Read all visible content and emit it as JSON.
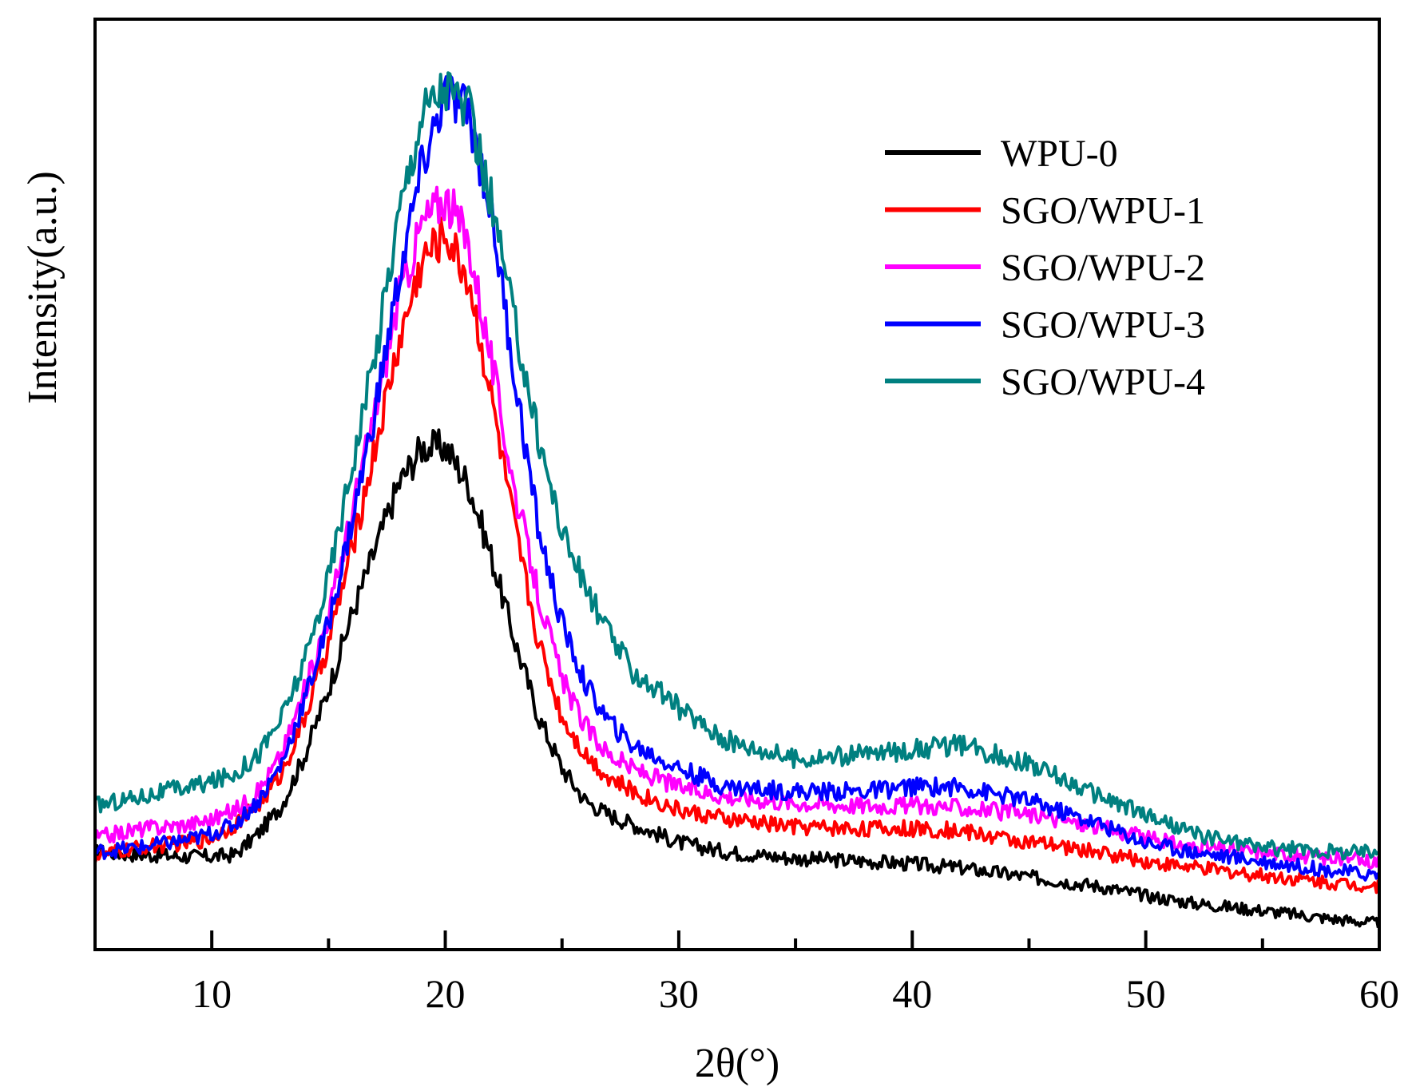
{
  "chart_data": {
    "type": "line",
    "title": "",
    "xlabel": "2θ(°)",
    "ylabel": "Intensity(a.u.)",
    "xlim": [
      5,
      60
    ],
    "ylim": [
      0,
      100
    ],
    "xticks": [
      10,
      20,
      30,
      40,
      50,
      60
    ],
    "xtick_labels": [
      "10",
      "20",
      "30",
      "40",
      "50",
      "60"
    ],
    "y_tick_labels_shown": false,
    "legend_position": "top-right",
    "series": [
      {
        "name": "WPU-0",
        "color": "#000000",
        "points": [
          [
            5,
            10.5
          ],
          [
            7,
            10.2
          ],
          [
            9,
            10.0
          ],
          [
            10,
            10.0
          ],
          [
            11,
            10.2
          ],
          [
            12,
            12.5
          ],
          [
            13,
            15.5
          ],
          [
            14,
            21
          ],
          [
            15,
            28
          ],
          [
            16,
            36
          ],
          [
            17,
            43
          ],
          [
            18,
            50
          ],
          [
            19,
            54
          ],
          [
            20,
            54
          ],
          [
            21,
            50
          ],
          [
            22,
            42
          ],
          [
            23,
            33
          ],
          [
            24,
            25
          ],
          [
            25,
            19.5
          ],
          [
            26,
            16
          ],
          [
            27,
            14.5
          ],
          [
            28,
            13.5
          ],
          [
            30,
            11.5
          ],
          [
            32,
            10.5
          ],
          [
            35,
            9.8
          ],
          [
            38,
            9.5
          ],
          [
            40,
            9.2
          ],
          [
            42,
            8.8
          ],
          [
            45,
            7.8
          ],
          [
            48,
            6.8
          ],
          [
            50,
            5.8
          ],
          [
            52,
            5.0
          ],
          [
            55,
            4.2
          ],
          [
            58,
            3.3
          ],
          [
            60,
            2.8
          ]
        ]
      },
      {
        "name": "SGO/WPU-1",
        "color": "#ff0000",
        "points": [
          [
            5,
            10.0
          ],
          [
            7,
            11.0
          ],
          [
            9,
            11.5
          ],
          [
            10,
            12.0
          ],
          [
            11,
            13.5
          ],
          [
            12,
            15.5
          ],
          [
            13,
            19
          ],
          [
            14,
            25
          ],
          [
            15,
            33
          ],
          [
            16,
            43
          ],
          [
            17,
            54
          ],
          [
            18,
            65
          ],
          [
            19,
            74
          ],
          [
            20,
            77
          ],
          [
            21,
            72
          ],
          [
            22,
            59
          ],
          [
            23,
            45
          ],
          [
            24,
            33
          ],
          [
            25,
            25
          ],
          [
            26,
            21
          ],
          [
            27,
            18.5
          ],
          [
            28,
            17
          ],
          [
            30,
            15
          ],
          [
            32,
            14
          ],
          [
            35,
            13.2
          ],
          [
            38,
            13
          ],
          [
            40,
            13
          ],
          [
            42,
            12.8
          ],
          [
            45,
            11.5
          ],
          [
            48,
            10.5
          ],
          [
            50,
            9.5
          ],
          [
            52,
            8.8
          ],
          [
            55,
            8.0
          ],
          [
            58,
            7.2
          ],
          [
            60,
            6.8
          ]
        ]
      },
      {
        "name": "SGO/WPU-2",
        "color": "#ff00ff",
        "points": [
          [
            5,
            12.0
          ],
          [
            7,
            13.0
          ],
          [
            9,
            13.5
          ],
          [
            10,
            14.0
          ],
          [
            11,
            15.0
          ],
          [
            12,
            17
          ],
          [
            13,
            21
          ],
          [
            14,
            28
          ],
          [
            15,
            36
          ],
          [
            16,
            47
          ],
          [
            17,
            58
          ],
          [
            18,
            70
          ],
          [
            19,
            78
          ],
          [
            20,
            81
          ],
          [
            21,
            76
          ],
          [
            22,
            63
          ],
          [
            23,
            49
          ],
          [
            24,
            38
          ],
          [
            25,
            29
          ],
          [
            26,
            24
          ],
          [
            27,
            21
          ],
          [
            28,
            19.5
          ],
          [
            30,
            17.5
          ],
          [
            32,
            16.5
          ],
          [
            35,
            15.8
          ],
          [
            38,
            15.5
          ],
          [
            40,
            15.5
          ],
          [
            42,
            15.3
          ],
          [
            45,
            14.5
          ],
          [
            48,
            13.2
          ],
          [
            50,
            12
          ],
          [
            52,
            11.0
          ],
          [
            55,
            10.5
          ],
          [
            58,
            9.8
          ],
          [
            60,
            9.5
          ]
        ]
      },
      {
        "name": "SGO/WPU-3",
        "color": "#0000ff",
        "points": [
          [
            5,
            10.5
          ],
          [
            7,
            11.0
          ],
          [
            9,
            11.8
          ],
          [
            10,
            12.5
          ],
          [
            11,
            13.5
          ],
          [
            12,
            16
          ],
          [
            13,
            20
          ],
          [
            14,
            27
          ],
          [
            15,
            35
          ],
          [
            16,
            46
          ],
          [
            17,
            58
          ],
          [
            18,
            72
          ],
          [
            19,
            84
          ],
          [
            20,
            92
          ],
          [
            21,
            90
          ],
          [
            22,
            79
          ],
          [
            23,
            61
          ],
          [
            24,
            45
          ],
          [
            25,
            35
          ],
          [
            26,
            28.5
          ],
          [
            27,
            24.5
          ],
          [
            28,
            22
          ],
          [
            30,
            19.5
          ],
          [
            32,
            17.5
          ],
          [
            35,
            17
          ],
          [
            38,
            17
          ],
          [
            40,
            17.5
          ],
          [
            42,
            17.5
          ],
          [
            45,
            16
          ],
          [
            48,
            13.5
          ],
          [
            50,
            11.5
          ],
          [
            52,
            10.5
          ],
          [
            55,
            9.5
          ],
          [
            58,
            8.5
          ],
          [
            60,
            8.0
          ]
        ]
      },
      {
        "name": "SGO/WPU-4",
        "color": "#008080",
        "points": [
          [
            5,
            15.5
          ],
          [
            7,
            16.5
          ],
          [
            9,
            17.5
          ],
          [
            10,
            18.0
          ],
          [
            11,
            19
          ],
          [
            12,
            21
          ],
          [
            13,
            25
          ],
          [
            14,
            31
          ],
          [
            15,
            40
          ],
          [
            16,
            52
          ],
          [
            17,
            64
          ],
          [
            18,
            79
          ],
          [
            19,
            90
          ],
          [
            20,
            93
          ],
          [
            21,
            90
          ],
          [
            22,
            80
          ],
          [
            23,
            67
          ],
          [
            24,
            55
          ],
          [
            25,
            45
          ],
          [
            26,
            39
          ],
          [
            27,
            34
          ],
          [
            28,
            30
          ],
          [
            30,
            26
          ],
          [
            32,
            22.5
          ],
          [
            35,
            20.5
          ],
          [
            38,
            21
          ],
          [
            40,
            21.5
          ],
          [
            42,
            22
          ],
          [
            45,
            20
          ],
          [
            48,
            16.5
          ],
          [
            50,
            14.5
          ],
          [
            52,
            12.5
          ],
          [
            55,
            11.0
          ],
          [
            58,
            10.5
          ],
          [
            60,
            10.5
          ]
        ]
      }
    ]
  }
}
